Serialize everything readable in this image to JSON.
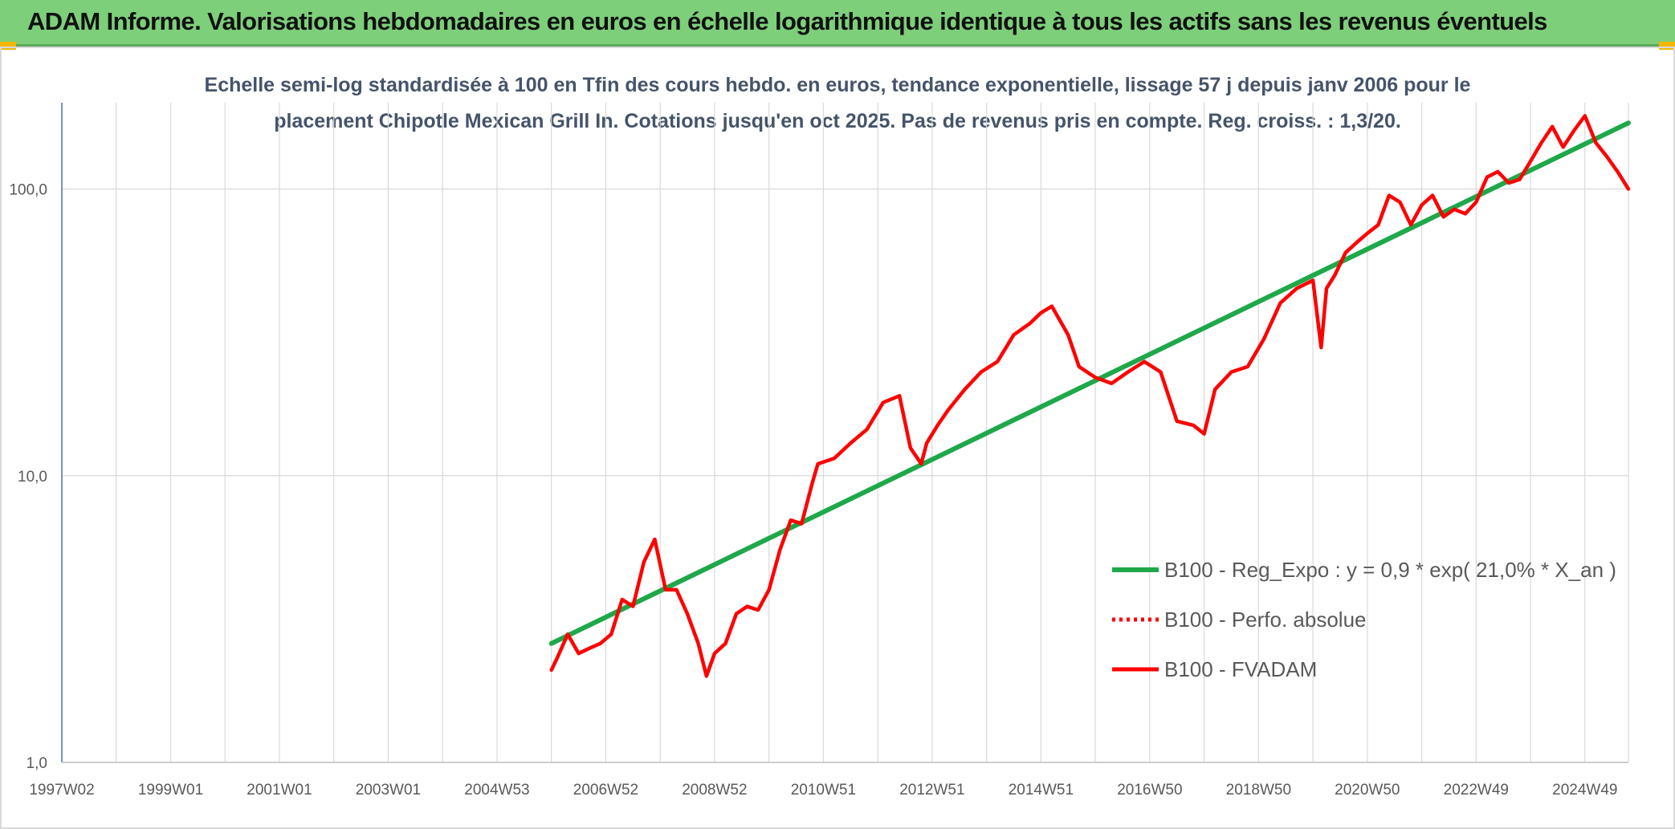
{
  "banner": {
    "title": "ADAM Informe. Valorisations hebdomadaires en euros en échelle logarithmique identique à tous les actifs sans les revenus éventuels",
    "bg_color": "#7dcf7a",
    "corner_color": "#f2b705"
  },
  "chart_data": {
    "type": "line",
    "title_lines": [
      "Echelle semi-log standardisée à 100 en Tfin des cours hebdo. en euros, tendance exponentielle, lissage 57 j depuis janv 2006 pour le",
      "placement Chipotle Mexican Grill In. Cotations jusqu'en oct 2025. Pas de revenus pris en compte. Reg. croiss. : 1,3/20."
    ],
    "y_scale": "log",
    "ylim": [
      1,
      200
    ],
    "y_ticks": [
      "1,0",
      "10,0",
      "100,0"
    ],
    "y_tick_values": [
      1,
      10,
      100
    ],
    "x_ticks": [
      "1997W02",
      "1999W01",
      "2001W01",
      "2003W01",
      "2004W53",
      "2006W52",
      "2008W52",
      "2010W51",
      "2012W51",
      "2014W51",
      "2016W50",
      "2018W50",
      "2020W50",
      "2022W49",
      "2024W49"
    ],
    "x_tick_values": [
      1997.0,
      1999.0,
      2001.0,
      2003.0,
      2005.0,
      2007.0,
      2009.0,
      2011.0,
      2013.0,
      2015.0,
      2017.0,
      2019.0,
      2021.0,
      2023.0,
      2025.0
    ],
    "xlim": [
      1997.0,
      2025.8
    ],
    "grid": true,
    "legend_position": "right-bottom",
    "series": [
      {
        "name": "B100 - Reg_Expo : y = 0,9 * exp( 21,0% *  X_an )",
        "color": "#1fa84a",
        "style": "solid",
        "x": [
          2006.0,
          2025.8
        ],
        "y": [
          2.6,
          170
        ]
      },
      {
        "name": "B100 - Perfo. absolue",
        "color": "#ff0000",
        "style": "dotted",
        "x": [],
        "y": []
      },
      {
        "name": "B100 - FVADAM",
        "color": "#ff0000",
        "style": "solid",
        "x": [
          2006.0,
          2006.1,
          2006.3,
          2006.5,
          2006.7,
          2006.9,
          2007.1,
          2007.3,
          2007.5,
          2007.7,
          2007.9,
          2008.1,
          2008.3,
          2008.5,
          2008.7,
          2008.85,
          2009.0,
          2009.2,
          2009.4,
          2009.6,
          2009.8,
          2010.0,
          2010.2,
          2010.4,
          2010.6,
          2010.8,
          2010.9,
          2011.2,
          2011.5,
          2011.8,
          2012.1,
          2012.4,
          2012.6,
          2012.8,
          2012.9,
          2013.1,
          2013.3,
          2013.6,
          2013.9,
          2014.2,
          2014.5,
          2014.8,
          2015.0,
          2015.2,
          2015.5,
          2015.7,
          2016.0,
          2016.3,
          2016.6,
          2016.9,
          2017.2,
          2017.5,
          2017.8,
          2018.0,
          2018.2,
          2018.5,
          2018.8,
          2019.1,
          2019.4,
          2019.7,
          2020.0,
          2020.15,
          2020.25,
          2020.4,
          2020.6,
          2020.8,
          2021.0,
          2021.2,
          2021.4,
          2021.6,
          2021.8,
          2022.0,
          2022.2,
          2022.4,
          2022.6,
          2022.8,
          2023.0,
          2023.2,
          2023.4,
          2023.6,
          2023.8,
          2024.0,
          2024.2,
          2024.4,
          2024.6,
          2024.8,
          2025.0,
          2025.2,
          2025.4,
          2025.6,
          2025.8
        ],
        "y": [
          2.1,
          2.3,
          2.8,
          2.4,
          2.5,
          2.6,
          2.8,
          3.7,
          3.5,
          5.0,
          6.0,
          4.0,
          4.0,
          3.3,
          2.6,
          2.0,
          2.4,
          2.6,
          3.3,
          3.5,
          3.4,
          4.0,
          5.5,
          7.0,
          6.8,
          9.5,
          11.0,
          11.5,
          13.0,
          14.5,
          18.0,
          19.0,
          12.5,
          11.0,
          13.0,
          15.0,
          17.0,
          20.0,
          23.0,
          25.0,
          31.0,
          34.0,
          37.0,
          39.0,
          31.0,
          24.0,
          22.0,
          21.0,
          23.0,
          25.0,
          23.0,
          15.5,
          15.0,
          14.0,
          20.0,
          23.0,
          24.0,
          30.0,
          40.0,
          45.0,
          48.0,
          28.0,
          45.0,
          50.0,
          60.0,
          65.0,
          70.0,
          75.0,
          95.0,
          90.0,
          75.0,
          88.0,
          95.0,
          80.0,
          85.0,
          82.0,
          90.0,
          110.0,
          115.0,
          105.0,
          108.0,
          125.0,
          145.0,
          165.0,
          140.0,
          160.0,
          180.0,
          145.0,
          130.0,
          115.0,
          100.0
        ]
      }
    ]
  }
}
